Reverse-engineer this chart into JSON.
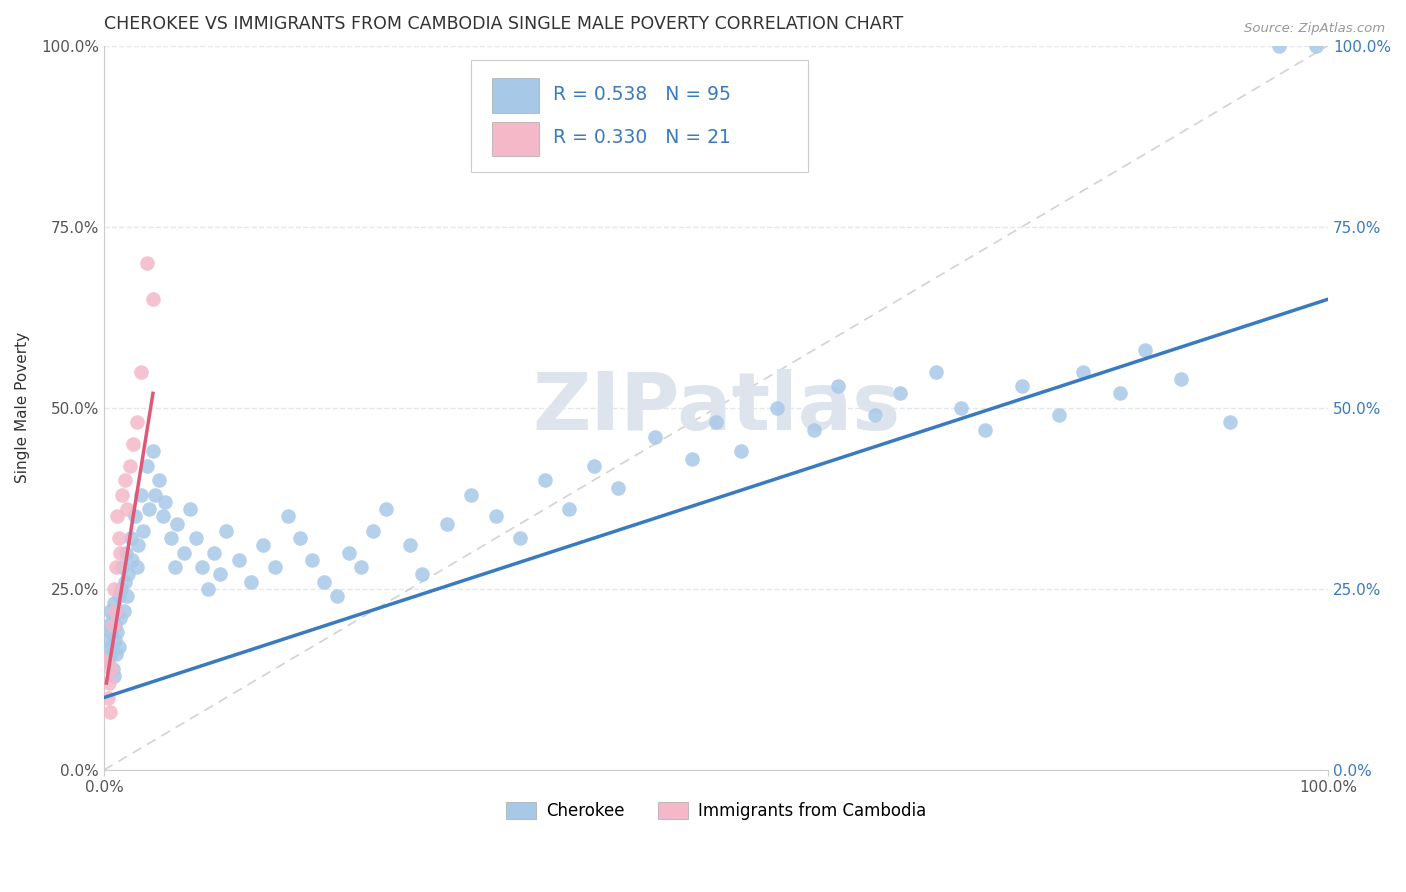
{
  "title": "CHEROKEE VS IMMIGRANTS FROM CAMBODIA SINGLE MALE POVERTY CORRELATION CHART",
  "source": "Source: ZipAtlas.com",
  "ylabel": "Single Male Poverty",
  "xlim": [
    0,
    1.0
  ],
  "ylim": [
    0,
    1.0
  ],
  "ytick_vals": [
    0.0,
    0.25,
    0.5,
    0.75,
    1.0
  ],
  "ytick_labels": [
    "0.0%",
    "25.0%",
    "50.0%",
    "75.0%",
    "100.0%"
  ],
  "xtick_vals": [
    0.0,
    1.0
  ],
  "xtick_labels": [
    "0.0%",
    "100.0%"
  ],
  "watermark": "ZIPatlas",
  "color_cherokee": "#a8c8e8",
  "color_cambodia": "#f4b8c8",
  "color_line_blue": "#3a7abf",
  "color_line_pink": "#e05878",
  "color_diag": "#c8c8c8",
  "background_color": "#ffffff",
  "grid_color": "#e4e8ec",
  "cherokee_x": [
    0.002,
    0.003,
    0.004,
    0.005,
    0.005,
    0.006,
    0.006,
    0.007,
    0.007,
    0.008,
    0.008,
    0.009,
    0.009,
    0.01,
    0.01,
    0.011,
    0.012,
    0.012,
    0.013,
    0.014,
    0.015,
    0.016,
    0.017,
    0.018,
    0.019,
    0.02,
    0.022,
    0.023,
    0.025,
    0.027,
    0.028,
    0.03,
    0.032,
    0.035,
    0.037,
    0.04,
    0.042,
    0.045,
    0.048,
    0.05,
    0.055,
    0.058,
    0.06,
    0.065,
    0.07,
    0.075,
    0.08,
    0.085,
    0.09,
    0.095,
    0.1,
    0.11,
    0.12,
    0.13,
    0.14,
    0.15,
    0.16,
    0.17,
    0.18,
    0.19,
    0.2,
    0.21,
    0.22,
    0.23,
    0.25,
    0.26,
    0.28,
    0.3,
    0.32,
    0.34,
    0.36,
    0.38,
    0.4,
    0.42,
    0.45,
    0.48,
    0.5,
    0.52,
    0.55,
    0.58,
    0.6,
    0.63,
    0.65,
    0.68,
    0.7,
    0.72,
    0.75,
    0.78,
    0.8,
    0.83,
    0.85,
    0.88,
    0.92,
    0.96,
    0.99
  ],
  "cherokee_y": [
    0.18,
    0.15,
    0.2,
    0.17,
    0.22,
    0.16,
    0.19,
    0.14,
    0.21,
    0.13,
    0.23,
    0.18,
    0.2,
    0.16,
    0.22,
    0.19,
    0.24,
    0.17,
    0.21,
    0.25,
    0.28,
    0.22,
    0.26,
    0.3,
    0.24,
    0.27,
    0.32,
    0.29,
    0.35,
    0.28,
    0.31,
    0.38,
    0.33,
    0.42,
    0.36,
    0.44,
    0.38,
    0.4,
    0.35,
    0.37,
    0.32,
    0.28,
    0.34,
    0.3,
    0.36,
    0.32,
    0.28,
    0.25,
    0.3,
    0.27,
    0.33,
    0.29,
    0.26,
    0.31,
    0.28,
    0.35,
    0.32,
    0.29,
    0.26,
    0.24,
    0.3,
    0.28,
    0.33,
    0.36,
    0.31,
    0.27,
    0.34,
    0.38,
    0.35,
    0.32,
    0.4,
    0.36,
    0.42,
    0.39,
    0.46,
    0.43,
    0.48,
    0.44,
    0.5,
    0.47,
    0.53,
    0.49,
    0.52,
    0.55,
    0.5,
    0.47,
    0.53,
    0.49,
    0.55,
    0.52,
    0.58,
    0.54,
    0.48,
    1.0,
    1.0
  ],
  "cambodia_x": [
    0.002,
    0.003,
    0.004,
    0.005,
    0.006,
    0.007,
    0.008,
    0.009,
    0.01,
    0.011,
    0.012,
    0.013,
    0.015,
    0.017,
    0.019,
    0.021,
    0.024,
    0.027,
    0.03,
    0.035,
    0.04
  ],
  "cambodia_y": [
    0.15,
    0.1,
    0.12,
    0.08,
    0.14,
    0.2,
    0.25,
    0.22,
    0.28,
    0.35,
    0.32,
    0.3,
    0.38,
    0.4,
    0.36,
    0.42,
    0.45,
    0.48,
    0.55,
    0.7,
    0.65
  ],
  "line1_x0": 0.0,
  "line1_y0": 0.1,
  "line1_x1": 1.0,
  "line1_y1": 0.65,
  "line2_x0": 0.002,
  "line2_y0": 0.12,
  "line2_x1": 0.04,
  "line2_y1": 0.52
}
